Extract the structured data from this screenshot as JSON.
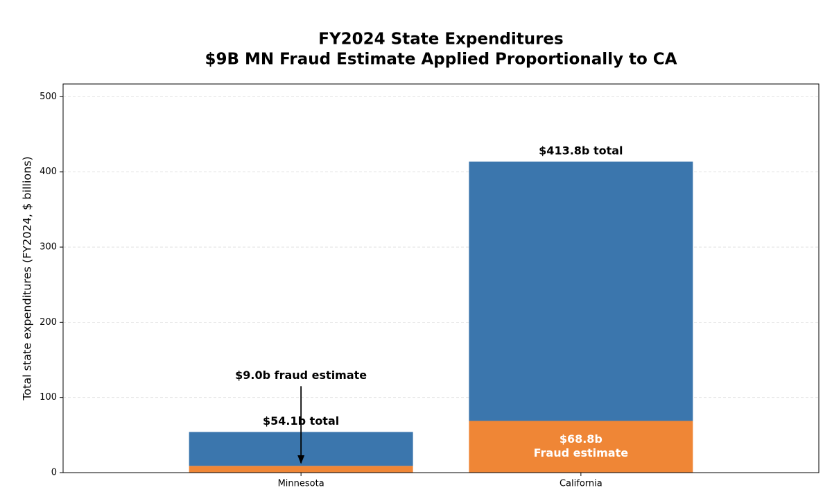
{
  "chart_data": {
    "type": "stacked_bar",
    "title": [
      "FY2024 State Expenditures",
      "$9B MN Fraud Estimate Applied Proportionally to CA"
    ],
    "y_label": "Total state expenditures (FY2024, $ billions)",
    "categories": [
      "Minnesota",
      "California"
    ],
    "series": [
      {
        "color": "#ef8636",
        "values": [
          9.0,
          68.8
        ],
        "value_labels": [
          [
            "$9.0b fraud estimate"
          ],
          [
            "$68.8b",
            "Fraud estimate"
          ]
        ]
      },
      {
        "color": "#3b76ad",
        "values": [
          45.1,
          345.0
        ]
      }
    ],
    "total_labels": [
      "$54.1b total",
      "$413.8b total"
    ],
    "xlim": [
      -0.85,
      1.85
    ],
    "ylim": [
      0,
      517
    ],
    "yticks": [
      0,
      100,
      200,
      300,
      400,
      500
    ],
    "grid": true
  }
}
